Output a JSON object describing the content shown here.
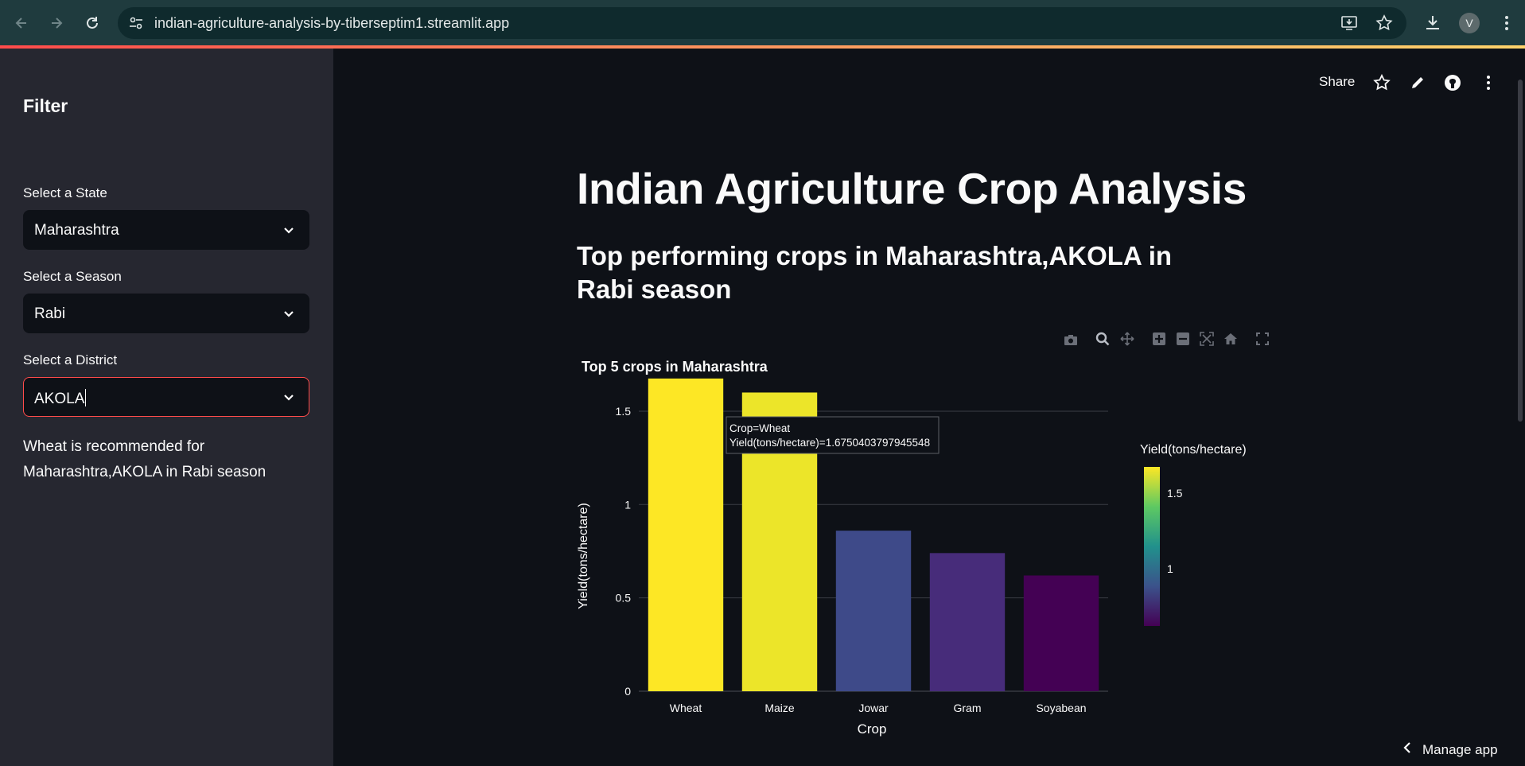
{
  "browser": {
    "url": "indian-agriculture-analysis-by-tiberseptim1.streamlit.app",
    "avatar_letter": "V"
  },
  "app_header": {
    "share_label": "Share"
  },
  "sidebar": {
    "title": "Filter",
    "state": {
      "label": "Select a State",
      "value": "Maharashtra"
    },
    "season": {
      "label": "Select a Season",
      "value": "Rabi"
    },
    "district": {
      "label": "Select a District",
      "value": "AKOLA"
    },
    "recommendation": "Wheat is recommended for Maharashtra,AKOLA in Rabi season"
  },
  "main": {
    "title": "Indian Agriculture Crop Analysis",
    "subtitle": "Top performing crops in Maharashtra,AKOLA in Rabi season"
  },
  "manage_app_label": "Manage app",
  "chart_data": {
    "type": "bar",
    "title": "Top 5 crops in Maharashtra",
    "xlabel": "Crop",
    "ylabel": "Yield(tons/hectare)",
    "categories": [
      "Wheat",
      "Maize",
      "Jowar",
      "Gram",
      "Soyabean"
    ],
    "values": [
      1.6750403797945548,
      1.6,
      0.86,
      0.74,
      0.62
    ],
    "ylim": [
      0,
      1.7
    ],
    "yticks": [
      0,
      0.5,
      1,
      1.5
    ],
    "ytick_labels": [
      "0",
      "0.5",
      "1",
      "1.5"
    ],
    "colorbar": {
      "title": "Yield(tons/hectare)",
      "ticks": [
        1,
        1.5
      ],
      "tick_labels": [
        "1",
        "1.5"
      ],
      "range": [
        0.62,
        1.675
      ]
    },
    "bar_colors": [
      "#fde725",
      "#ece529",
      "#3e4a89",
      "#472c7a",
      "#440154"
    ],
    "tooltip": {
      "line1": "Crop=Wheat",
      "line2": "Yield(tons/hectare)=1.6750403797945548"
    },
    "grid": true
  },
  "colors": {
    "accent": "#ff4b4b",
    "sidebar_bg": "#262730",
    "main_bg": "#0e1117"
  }
}
